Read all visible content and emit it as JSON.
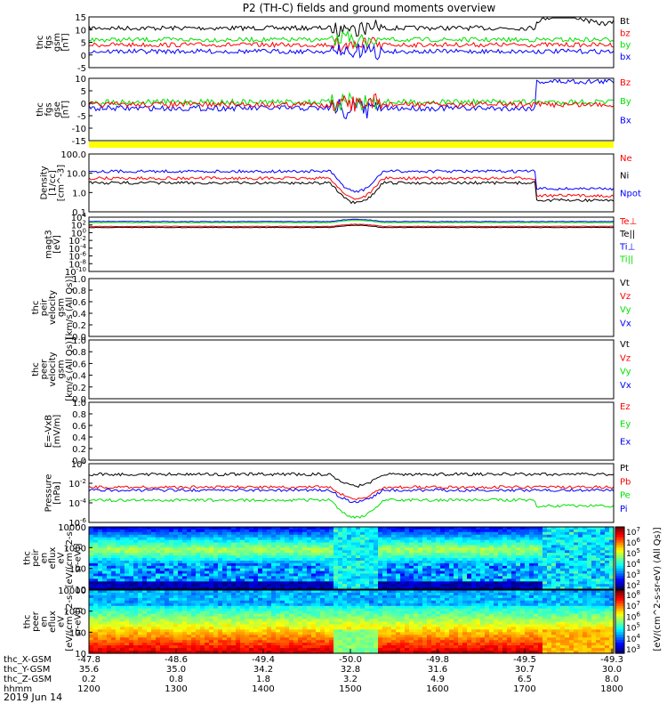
{
  "chart_data": {
    "type": "line",
    "title": "P2 (TH-C) fields and ground moments overview",
    "date_label": "2019 Jun 14",
    "colors": {
      "black": "#000000",
      "red": "#ff0000",
      "green": "#00e000",
      "blue": "#0000ff",
      "yellow": "#ffff00"
    },
    "panels": [
      {
        "id": "fgs-gsm",
        "ylabel": [
          "thc",
          "fgs",
          "gsm",
          "[nT]"
        ],
        "ylim": [
          -5,
          15
        ],
        "yticks": [
          "15",
          "10",
          "5",
          "0",
          "-5"
        ],
        "legend": [
          {
            "name": "Bt",
            "color": "black"
          },
          {
            "name": "bz",
            "color": "red"
          },
          {
            "name": "by",
            "color": "green"
          },
          {
            "name": "bx",
            "color": "blue"
          }
        ]
      },
      {
        "id": "fgs-gse",
        "ylabel": [
          "thc",
          "fgs",
          "gse",
          "[nT]"
        ],
        "ylim": [
          -15,
          10
        ],
        "yticks": [
          "10",
          "5",
          "0",
          "-5",
          "-10",
          "-15"
        ],
        "legend": [
          {
            "name": "Bz",
            "color": "red"
          },
          {
            "name": "By",
            "color": "green"
          },
          {
            "name": "Bx",
            "color": "blue"
          }
        ]
      },
      {
        "id": "density",
        "ylabel": [
          "Density",
          "[1/cc]",
          "[cm^-3]"
        ],
        "scale": "log",
        "yticks": [
          "100.0",
          "10.0",
          "1.0",
          "0.1"
        ],
        "legend": [
          {
            "name": "Ne",
            "color": "red"
          },
          {
            "name": "Ni",
            "color": "black"
          },
          {
            "name": "Npot",
            "color": "blue"
          }
        ]
      },
      {
        "id": "temperature",
        "ylabel": [
          "magt3",
          "[eV]"
        ],
        "scale": "log",
        "yticks": [
          "10^4",
          "10^2",
          "10^0",
          "10^-2",
          "10^-4",
          "10^-6",
          "10^-8",
          "10^-10"
        ],
        "legend": [
          {
            "name": "Te⊥",
            "color": "red"
          },
          {
            "name": "Te||",
            "color": "black"
          },
          {
            "name": "Ti⊥",
            "color": "blue"
          },
          {
            "name": "Ti||",
            "color": "green"
          }
        ]
      },
      {
        "id": "peir-velocity",
        "ylabel": [
          "thc",
          "peir",
          "velocity",
          "gsm",
          "[km/s (All Qs)]"
        ],
        "ylim": [
          0,
          1
        ],
        "yticks": [
          "1.0",
          "0.8",
          "0.6",
          "0.4",
          "0.2",
          "0.0"
        ],
        "legend": [
          {
            "name": "Vt",
            "color": "black"
          },
          {
            "name": "Vz",
            "color": "red"
          },
          {
            "name": "Vy",
            "color": "green"
          },
          {
            "name": "Vx",
            "color": "blue"
          }
        ]
      },
      {
        "id": "peer-velocity",
        "ylabel": [
          "thc",
          "peer",
          "velocity",
          "gsm",
          "[km/s (All Qs)]"
        ],
        "ylim": [
          0,
          1
        ],
        "yticks": [
          "1.0",
          "0.8",
          "0.6",
          "0.4",
          "0.2",
          "0.0"
        ],
        "legend": [
          {
            "name": "Vt",
            "color": "black"
          },
          {
            "name": "Vz",
            "color": "red"
          },
          {
            "name": "Vy",
            "color": "green"
          },
          {
            "name": "Vx",
            "color": "blue"
          }
        ]
      },
      {
        "id": "efield",
        "ylabel": [
          "E=-VxB",
          "[mV/m]"
        ],
        "ylim": [
          0,
          1
        ],
        "yticks": [
          "1.0",
          "0.8",
          "0.6",
          "0.4",
          "0.2",
          "0.0"
        ],
        "legend": [
          {
            "name": "Ez",
            "color": "red"
          },
          {
            "name": "Ey",
            "color": "green"
          },
          {
            "name": "Ex",
            "color": "blue"
          }
        ]
      },
      {
        "id": "pressure",
        "ylabel": [
          "Pressure",
          "[nPa]"
        ],
        "scale": "log",
        "yticks": [
          "10^0",
          "10^-2",
          "10^-4",
          "10^-6"
        ],
        "legend": [
          {
            "name": "Pt",
            "color": "black"
          },
          {
            "name": "Pb",
            "color": "red"
          },
          {
            "name": "Pe",
            "color": "green"
          },
          {
            "name": "Pi",
            "color": "blue"
          }
        ]
      },
      {
        "id": "peir-spec",
        "type": "heatmap",
        "ylabel": [
          "thc",
          "peir",
          "en",
          "eflux",
          "eV",
          "[eV/(cm^2-s-",
          "sr-eV)]"
        ],
        "scale": "log",
        "yticks": [
          "10000",
          "1000",
          "100",
          "10"
        ],
        "colorbar": {
          "label": "[eV/(cm^2-s-sr-eV) (All Qs)]",
          "ticks": [
            "10^7",
            "10^6",
            "10^5",
            "10^4",
            "10^3",
            "10^2"
          ]
        }
      },
      {
        "id": "peer-spec",
        "type": "heatmap",
        "ylabel": [
          "thc",
          "peer",
          "en",
          "eflux",
          "eV",
          "[eV/(cm^2-s-",
          "sr-eV)]"
        ],
        "scale": "log",
        "yticks": [
          "10000",
          "1000",
          "100",
          "10"
        ],
        "colorbar": {
          "label": "[eV/(cm^2-s-sr-eV) (All Qs)]",
          "ticks": [
            "10^8",
            "10^7",
            "10^6",
            "10^5",
            "10^4",
            "10^3"
          ]
        }
      }
    ],
    "x_axis": {
      "row_labels": [
        "thc_X-GSM",
        "thc_Y-GSM",
        "thc_Z-GSM",
        "hhmm"
      ],
      "columns": [
        [
          "-47.8",
          "35.6",
          "0.2",
          "1200"
        ],
        [
          "-48.6",
          "35.0",
          "0.8",
          "1300"
        ],
        [
          "-49.4",
          "34.2",
          "1.8",
          "1400"
        ],
        [
          "-50.0",
          "32.8",
          "3.2",
          "1500"
        ],
        [
          "-49.8",
          "31.6",
          "4.9",
          "1600"
        ],
        [
          "-49.5",
          "30.7",
          "6.5",
          "1700"
        ],
        [
          "-49.3",
          "30.0",
          "8.0",
          "1800"
        ]
      ]
    }
  }
}
